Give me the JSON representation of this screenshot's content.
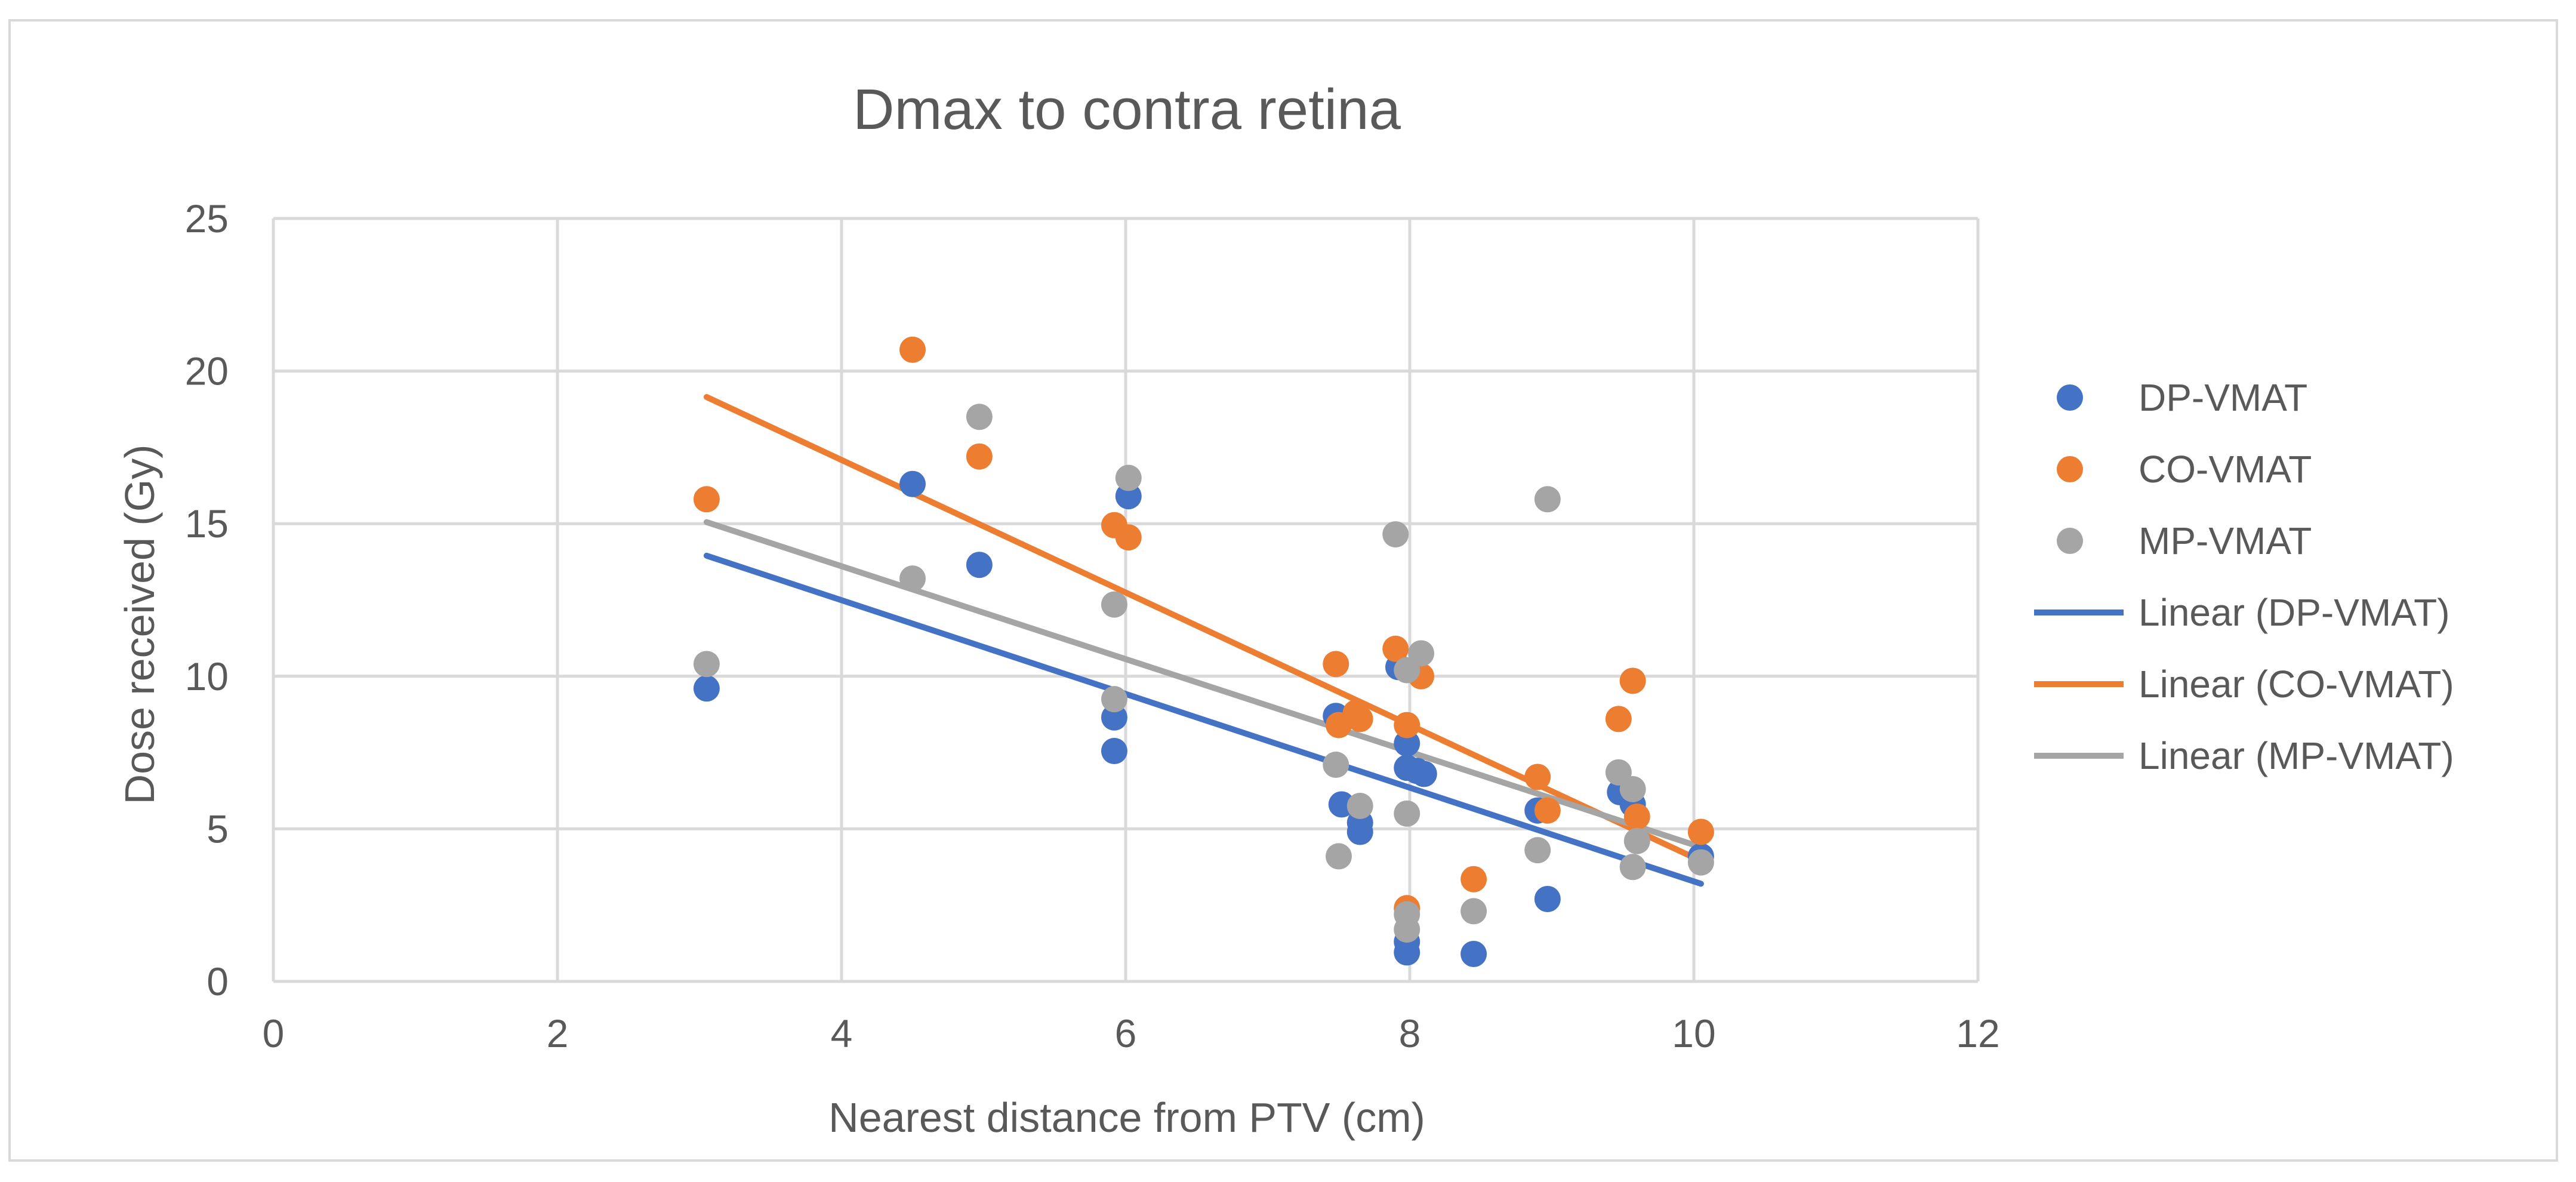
{
  "chart_data": {
    "type": "scatter",
    "title": "Dmax to contra retina",
    "xlabel": "Nearest distance from PTV (cm)",
    "ylabel": "Dose received (Gy)",
    "xlim": [
      0,
      12
    ],
    "ylim": [
      0,
      25
    ],
    "x_ticks": [
      "0",
      "2",
      "4",
      "6",
      "8",
      "10",
      "12"
    ],
    "y_ticks": [
      "0",
      "5",
      "10",
      "15",
      "20",
      "25"
    ],
    "grid": true,
    "legend_position": "right",
    "series": [
      {
        "name": "DP-VMAT",
        "color": "#4472c4",
        "points": [
          [
            3.05,
            9.6
          ],
          [
            4.5,
            16.3
          ],
          [
            4.97,
            13.65
          ],
          [
            5.92,
            8.65
          ],
          [
            5.92,
            7.55
          ],
          [
            6.02,
            15.9
          ],
          [
            7.48,
            8.7
          ],
          [
            7.52,
            5.8
          ],
          [
            7.65,
            4.9
          ],
          [
            7.65,
            5.2
          ],
          [
            7.92,
            10.3
          ],
          [
            7.98,
            7.8
          ],
          [
            7.98,
            7.0
          ],
          [
            8.05,
            6.9
          ],
          [
            8.1,
            6.8
          ],
          [
            7.98,
            1.3
          ],
          [
            7.98,
            0.95
          ],
          [
            8.45,
            0.9
          ],
          [
            8.9,
            5.6
          ],
          [
            8.97,
            2.7
          ],
          [
            9.48,
            6.2
          ],
          [
            9.57,
            5.8
          ],
          [
            10.05,
            4.1
          ]
        ]
      },
      {
        "name": "CO-VMAT",
        "color": "#ed7d31",
        "points": [
          [
            3.05,
            15.8
          ],
          [
            4.5,
            20.7
          ],
          [
            4.97,
            17.2
          ],
          [
            5.92,
            14.95
          ],
          [
            6.02,
            14.55
          ],
          [
            7.48,
            10.4
          ],
          [
            7.5,
            8.4
          ],
          [
            7.62,
            8.8
          ],
          [
            7.65,
            8.6
          ],
          [
            7.9,
            10.9
          ],
          [
            7.98,
            8.4
          ],
          [
            8.08,
            10.0
          ],
          [
            7.98,
            2.4
          ],
          [
            8.45,
            3.35
          ],
          [
            8.9,
            6.7
          ],
          [
            8.97,
            5.6
          ],
          [
            9.47,
            8.6
          ],
          [
            9.57,
            9.85
          ],
          [
            9.6,
            5.4
          ],
          [
            10.05,
            4.9
          ]
        ]
      },
      {
        "name": "MP-VMAT",
        "color": "#a5a5a5",
        "points": [
          [
            3.05,
            10.4
          ],
          [
            4.5,
            13.2
          ],
          [
            4.97,
            18.5
          ],
          [
            5.92,
            12.35
          ],
          [
            5.92,
            9.25
          ],
          [
            6.02,
            16.5
          ],
          [
            7.48,
            7.1
          ],
          [
            7.5,
            4.1
          ],
          [
            7.65,
            5.75
          ],
          [
            7.9,
            14.65
          ],
          [
            7.98,
            10.2
          ],
          [
            8.08,
            10.75
          ],
          [
            7.98,
            5.5
          ],
          [
            7.98,
            2.2
          ],
          [
            7.98,
            1.7
          ],
          [
            8.45,
            2.3
          ],
          [
            8.9,
            4.3
          ],
          [
            8.97,
            15.8
          ],
          [
            9.47,
            6.85
          ],
          [
            9.57,
            6.3
          ],
          [
            9.57,
            3.75
          ],
          [
            9.6,
            4.6
          ],
          [
            10.05,
            3.9
          ]
        ]
      }
    ],
    "trendlines": [
      {
        "name": "Linear (DP-VMAT)",
        "color": "#4472c4",
        "x": [
          3.05,
          10.05
        ],
        "y": [
          13.95,
          3.2
        ]
      },
      {
        "name": "Linear (CO-VMAT)",
        "color": "#ed7d31",
        "x": [
          3.05,
          10.05
        ],
        "y": [
          19.15,
          3.95
        ]
      },
      {
        "name": "Linear (MP-VMAT)",
        "color": "#a5a5a5",
        "x": [
          3.05,
          10.05
        ],
        "y": [
          15.05,
          4.4
        ]
      }
    ]
  }
}
